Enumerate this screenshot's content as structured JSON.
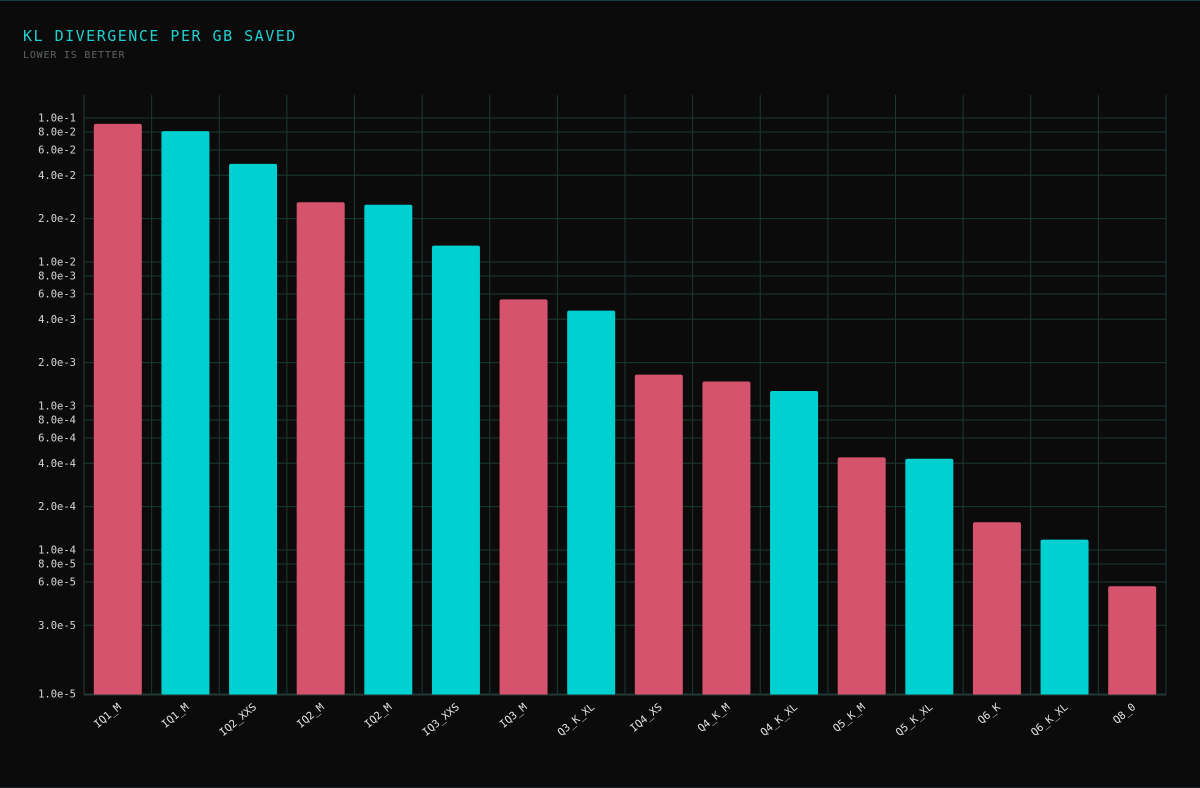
{
  "header": {
    "title": "KL DIVERGENCE PER GB SAVED",
    "subtitle": "LOWER IS BETTER"
  },
  "colors": {
    "background": "#0b0b0c",
    "accent": "#1fd0cf",
    "pink": "#d5536c",
    "teal": "#00d0d0",
    "grid": "#173a33"
  },
  "chart_data": {
    "type": "bar",
    "title": "KL DIVERGENCE PER GB SAVED",
    "subtitle": "LOWER IS BETTER",
    "y_scale": "log",
    "ylim": [
      1e-05,
      0.13
    ],
    "grid": true,
    "categories": [
      "IQ1_M",
      "IQ1_M",
      "IQ2_XXS",
      "IQ2_M",
      "IQ2_M",
      "IQ3_XXS",
      "IQ3_M",
      "Q3_K_XL",
      "IQ4_XS",
      "Q4_K_M",
      "Q4_K_XL",
      "Q5_K_M",
      "Q5_K_XL",
      "Q6_K",
      "Q6_K_XL",
      "Q8_0"
    ],
    "values": [
      0.091,
      0.081,
      0.048,
      0.026,
      0.025,
      0.013,
      0.0055,
      0.0046,
      0.00165,
      0.00148,
      0.00127,
      0.00044,
      0.00043,
      0.000156,
      0.000118,
      5.6e-05
    ],
    "bar_colors": [
      "#d5536c",
      "#00d0d0",
      "#00d0d0",
      "#d5536c",
      "#00d0d0",
      "#00d0d0",
      "#d5536c",
      "#00d0d0",
      "#d5536c",
      "#d5536c",
      "#00d0d0",
      "#d5536c",
      "#00d0d0",
      "#d5536c",
      "#00d0d0",
      "#d5536c"
    ],
    "y_ticks": [
      {
        "value": 0.1,
        "label": "1.0e-1"
      },
      {
        "value": 0.08,
        "label": "8.0e-2"
      },
      {
        "value": 0.06,
        "label": "6.0e-2"
      },
      {
        "value": 0.04,
        "label": "4.0e-2"
      },
      {
        "value": 0.02,
        "label": "2.0e-2"
      },
      {
        "value": 0.01,
        "label": "1.0e-2"
      },
      {
        "value": 0.008,
        "label": "8.0e-3"
      },
      {
        "value": 0.006,
        "label": "6.0e-3"
      },
      {
        "value": 0.004,
        "label": "4.0e-3"
      },
      {
        "value": 0.002,
        "label": "2.0e-3"
      },
      {
        "value": 0.001,
        "label": "1.0e-3"
      },
      {
        "value": 0.0008,
        "label": "8.0e-4"
      },
      {
        "value": 0.0006,
        "label": "6.0e-4"
      },
      {
        "value": 0.0004,
        "label": "4.0e-4"
      },
      {
        "value": 0.0002,
        "label": "2.0e-4"
      },
      {
        "value": 0.0001,
        "label": "1.0e-4"
      },
      {
        "value": 8e-05,
        "label": "8.0e-5"
      },
      {
        "value": 6e-05,
        "label": "6.0e-5"
      },
      {
        "value": 3e-05,
        "label": "3.0e-5"
      },
      {
        "value": 1e-05,
        "label": "1.0e-5"
      }
    ]
  }
}
